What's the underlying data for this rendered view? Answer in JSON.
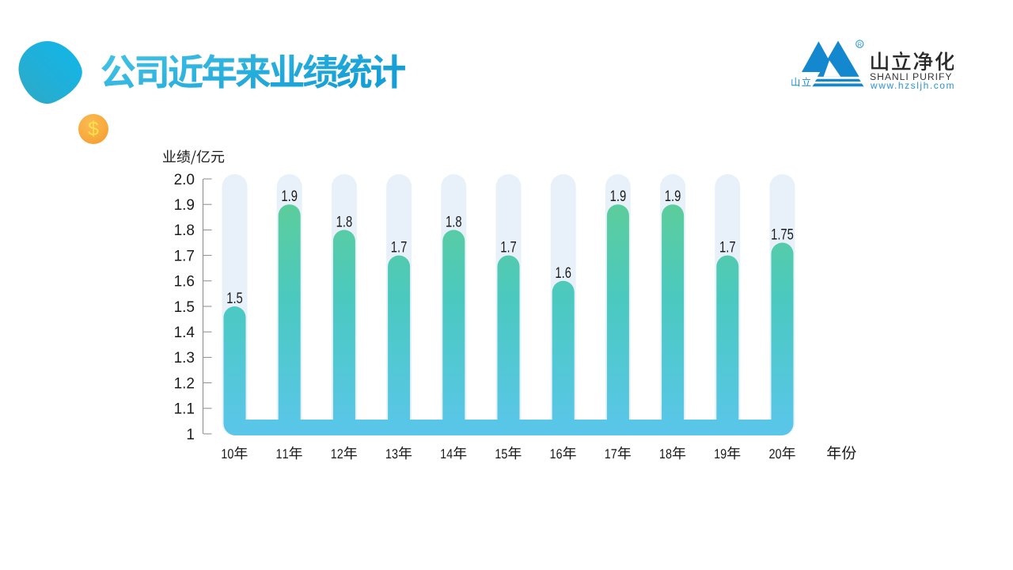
{
  "header": {
    "title": "公司近年来业绩统计",
    "title_color_start": "#44C3E6",
    "title_color_end": "#149FD6",
    "coin_symbol": "$"
  },
  "logo": {
    "brand_cn": "山立净化",
    "brand_en": "SHANLI PURIFY",
    "website": "www.hzsljh.com",
    "mark_text": "山立",
    "registered_symbol": "R",
    "color": "#1488CE"
  },
  "chart_data": {
    "type": "bar",
    "title": "公司近年来业绩统计",
    "ylabel": "业绩/亿元",
    "xlabel": "年份",
    "categories": [
      "10年",
      "11年",
      "12年",
      "13年",
      "14年",
      "15年",
      "16年",
      "17年",
      "18年",
      "19年",
      "20年"
    ],
    "values": [
      1.5,
      1.9,
      1.8,
      1.7,
      1.8,
      1.7,
      1.6,
      1.9,
      1.9,
      1.7,
      1.75
    ],
    "value_labels": [
      "1.5",
      "1.9",
      "1.8",
      "1.7",
      "1.8",
      "1.7",
      "1.6",
      "1.9",
      "1.9",
      "1.7",
      "1.75"
    ],
    "ylim": [
      1,
      2.0
    ],
    "yticks": [
      "2.0",
      "1.9",
      "1.8",
      "1.7",
      "1.6",
      "1.5",
      "1.4",
      "1.3",
      "1.2",
      "1.1",
      "1"
    ],
    "grid": false,
    "legend": null,
    "bar_gradient_top": "#61CE90",
    "bar_gradient_mid": "#4BC9C0",
    "bar_gradient_bottom": "#5AC6EB",
    "track_color": "#E8F1FA",
    "axis_color": "#8A8A8A",
    "label_color": "#1C1C1C"
  }
}
